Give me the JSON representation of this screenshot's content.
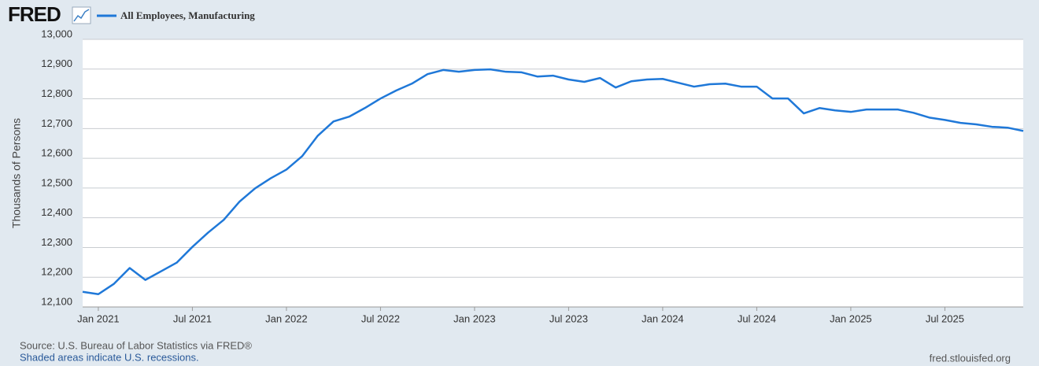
{
  "logo": "FRED",
  "chart_data": {
    "type": "line",
    "y_axis_label": "Thousands of Persons",
    "source": "Source: U.S. Bureau of Labor Statistics via FRED®",
    "note": "Shaded areas indicate U.S. recessions.",
    "site": "fred.stlouisfed.org",
    "x": [
      "2020-12",
      "2021-01",
      "2021-02",
      "2021-03",
      "2021-04",
      "2021-05",
      "2021-06",
      "2021-07",
      "2021-08",
      "2021-09",
      "2021-10",
      "2021-11",
      "2021-12",
      "2022-01",
      "2022-02",
      "2022-03",
      "2022-04",
      "2022-05",
      "2022-06",
      "2022-07",
      "2022-08",
      "2022-09",
      "2022-10",
      "2022-11",
      "2022-12",
      "2023-01",
      "2023-02",
      "2023-03",
      "2023-04",
      "2023-05",
      "2023-06",
      "2023-07",
      "2023-08",
      "2023-09",
      "2023-10",
      "2023-11",
      "2023-12",
      "2024-01",
      "2024-02",
      "2024-03",
      "2024-04",
      "2024-05",
      "2024-06",
      "2024-07",
      "2024-08",
      "2024-09",
      "2024-10",
      "2024-11",
      "2024-12",
      "2025-01",
      "2025-02",
      "2025-03",
      "2025-04",
      "2025-05",
      "2025-06",
      "2025-07",
      "2025-08",
      "2025-09",
      "2025-10",
      "2025-11",
      "2025-12"
    ],
    "series": [
      {
        "name": "All Employees, Manufacturing",
        "color": "#1f78d8",
        "values": [
          12151,
          12143,
          12178,
          12231,
          12191,
          12220,
          12249,
          12302,
          12350,
          12393,
          12454,
          12499,
          12533,
          12562,
          12607,
          12676,
          12724,
          12740,
          12769,
          12801,
          12828,
          12851,
          12883,
          12897,
          12891,
          12897,
          12899,
          12891,
          12889,
          12875,
          12878,
          12865,
          12857,
          12870,
          12838,
          12859,
          12865,
          12867,
          12854,
          12841,
          12849,
          12851,
          12841,
          12841,
          12801,
          12801,
          12751,
          12769,
          12761,
          12756,
          12764,
          12764,
          12764,
          12753,
          12737,
          12729,
          12719,
          12714,
          12706,
          12703,
          12692
        ]
      }
    ],
    "xlim": [
      "2020-12",
      "2025-12"
    ],
    "xticks": [
      {
        "value": "2021-01",
        "label": "Jan 2021"
      },
      {
        "value": "2021-07",
        "label": "Jul 2021"
      },
      {
        "value": "2022-01",
        "label": "Jan 2022"
      },
      {
        "value": "2022-07",
        "label": "Jul 2022"
      },
      {
        "value": "2023-01",
        "label": "Jan 2023"
      },
      {
        "value": "2023-07",
        "label": "Jul 2023"
      },
      {
        "value": "2024-01",
        "label": "Jan 2024"
      },
      {
        "value": "2024-07",
        "label": "Jul 2024"
      },
      {
        "value": "2025-01",
        "label": "Jan 2025"
      },
      {
        "value": "2025-07",
        "label": "Jul 2025"
      }
    ],
    "ylim": [
      12100,
      13000
    ],
    "yticks": [
      {
        "value": 12100,
        "label": "12,100"
      },
      {
        "value": 12200,
        "label": "12,200"
      },
      {
        "value": 12300,
        "label": "12,300"
      },
      {
        "value": 12400,
        "label": "12,400"
      },
      {
        "value": 12500,
        "label": "12,500"
      },
      {
        "value": 12600,
        "label": "12,600"
      },
      {
        "value": 12700,
        "label": "12,700"
      },
      {
        "value": 12800,
        "label": "12,800"
      },
      {
        "value": 12900,
        "label": "12,900"
      },
      {
        "value": 13000,
        "label": "13,000"
      }
    ],
    "grid": true
  }
}
